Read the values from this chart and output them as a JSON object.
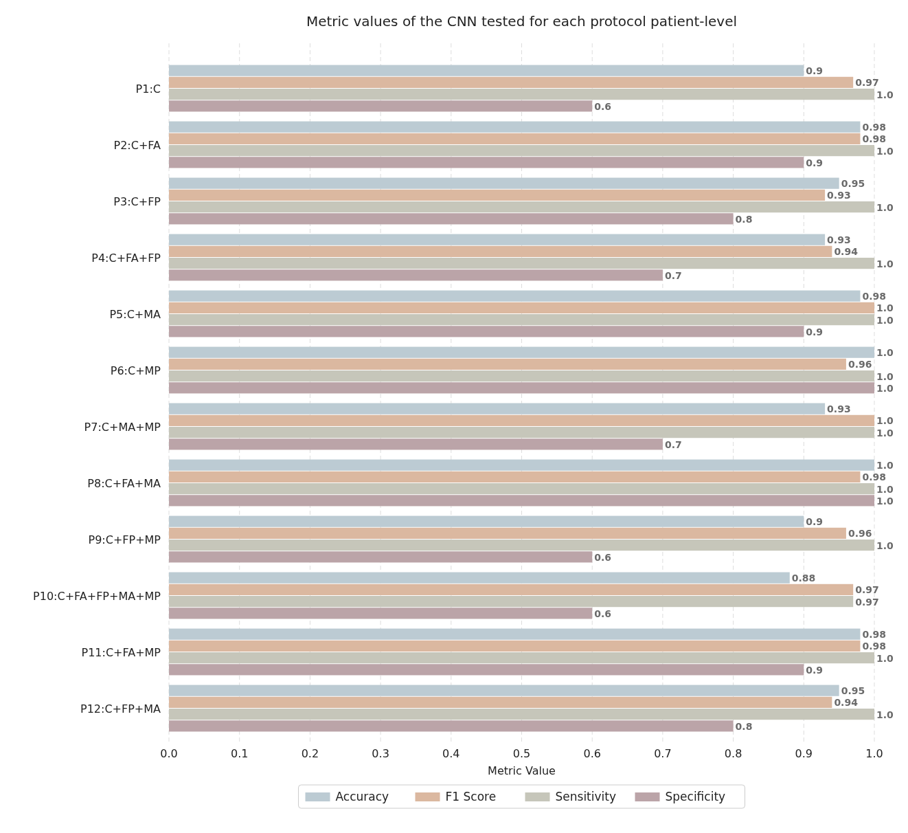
{
  "chart_data": {
    "type": "bar",
    "orientation": "horizontal",
    "title": "Metric values of the CNN tested for each protocol patient-level",
    "xlabel": "Metric Value",
    "categories": [
      "P1:C",
      "P2:C+FA",
      "P3:C+FP",
      "P4:C+FA+FP",
      "P5:C+MA",
      "P6:C+MP",
      "P7:C+MA+MP",
      "P8:C+FA+MA",
      "P9:C+FP+MP",
      "P10:C+FA+FP+MA+MP",
      "P11:C+FA+MP",
      "P12:C+FP+MA"
    ],
    "series": [
      {
        "name": "Accuracy",
        "color": "#bccbd3",
        "values": [
          0.9,
          0.98,
          0.95,
          0.93,
          0.98,
          1.0,
          0.93,
          1.0,
          0.9,
          0.88,
          0.98,
          0.95
        ],
        "value_labels": [
          "0.9",
          "0.98",
          "0.95",
          "0.93",
          "0.98",
          "1.0",
          "0.93",
          "1.0",
          "0.9",
          "0.88",
          "0.98",
          "0.95"
        ]
      },
      {
        "name": "F1 Score",
        "color": "#dbb8a0",
        "values": [
          0.97,
          0.98,
          0.93,
          0.94,
          1.0,
          0.96,
          1.0,
          0.98,
          0.96,
          0.97,
          0.98,
          0.94
        ],
        "value_labels": [
          "0.97",
          "0.98",
          "0.93",
          "0.94",
          "1.0",
          "0.96",
          "1.0",
          "0.98",
          "0.96",
          "0.97",
          "0.98",
          "0.94"
        ]
      },
      {
        "name": "Sensitivity",
        "color": "#c6c6ba",
        "values": [
          1.0,
          1.0,
          1.0,
          1.0,
          1.0,
          1.0,
          1.0,
          1.0,
          1.0,
          0.97,
          1.0,
          1.0
        ],
        "value_labels": [
          "1.0",
          "1.0",
          "1.0",
          "1.0",
          "1.0",
          "1.0",
          "1.0",
          "1.0",
          "1.0",
          "0.97",
          "1.0",
          "1.0"
        ]
      },
      {
        "name": "Specificity",
        "color": "#bba4a8",
        "values": [
          0.6,
          0.9,
          0.8,
          0.7,
          0.9,
          1.0,
          0.7,
          1.0,
          0.6,
          0.6,
          0.9,
          0.8
        ],
        "value_labels": [
          "0.6",
          "0.9",
          "0.8",
          "0.7",
          "0.9",
          "1.0",
          "0.7",
          "1.0",
          "0.6",
          "0.6",
          "0.9",
          "0.8"
        ]
      }
    ],
    "xlim": [
      0,
      1
    ],
    "xticks": [
      {
        "value": 0,
        "label": "0.0"
      },
      {
        "value": 0.1,
        "label": "0.1"
      },
      {
        "value": 0.2,
        "label": "0.2"
      },
      {
        "value": 0.3,
        "label": "0.3"
      },
      {
        "value": 0.4,
        "label": "0.4"
      },
      {
        "value": 0.5,
        "label": "0.5"
      },
      {
        "value": 0.6,
        "label": "0.6"
      },
      {
        "value": 0.7,
        "label": "0.7"
      },
      {
        "value": 0.8,
        "label": "0.8"
      },
      {
        "value": 0.9,
        "label": "0.9"
      },
      {
        "value": 1,
        "label": "1.0"
      }
    ],
    "grid": "x",
    "legend": "bottom"
  }
}
